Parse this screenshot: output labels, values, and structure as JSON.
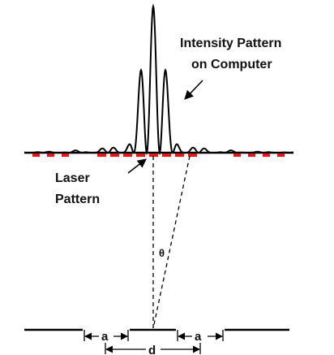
{
  "labels": {
    "intensity_line1": "Intensity Pattern",
    "intensity_line2": "on Computer",
    "laser_line1": "Laser",
    "laser_line2": "Pattern",
    "theta": "θ",
    "slit_width_left": "a",
    "slit_width_right": "a",
    "separation": "d"
  },
  "colors": {
    "ink": "#000000",
    "laser": "#dd1a1a"
  }
}
